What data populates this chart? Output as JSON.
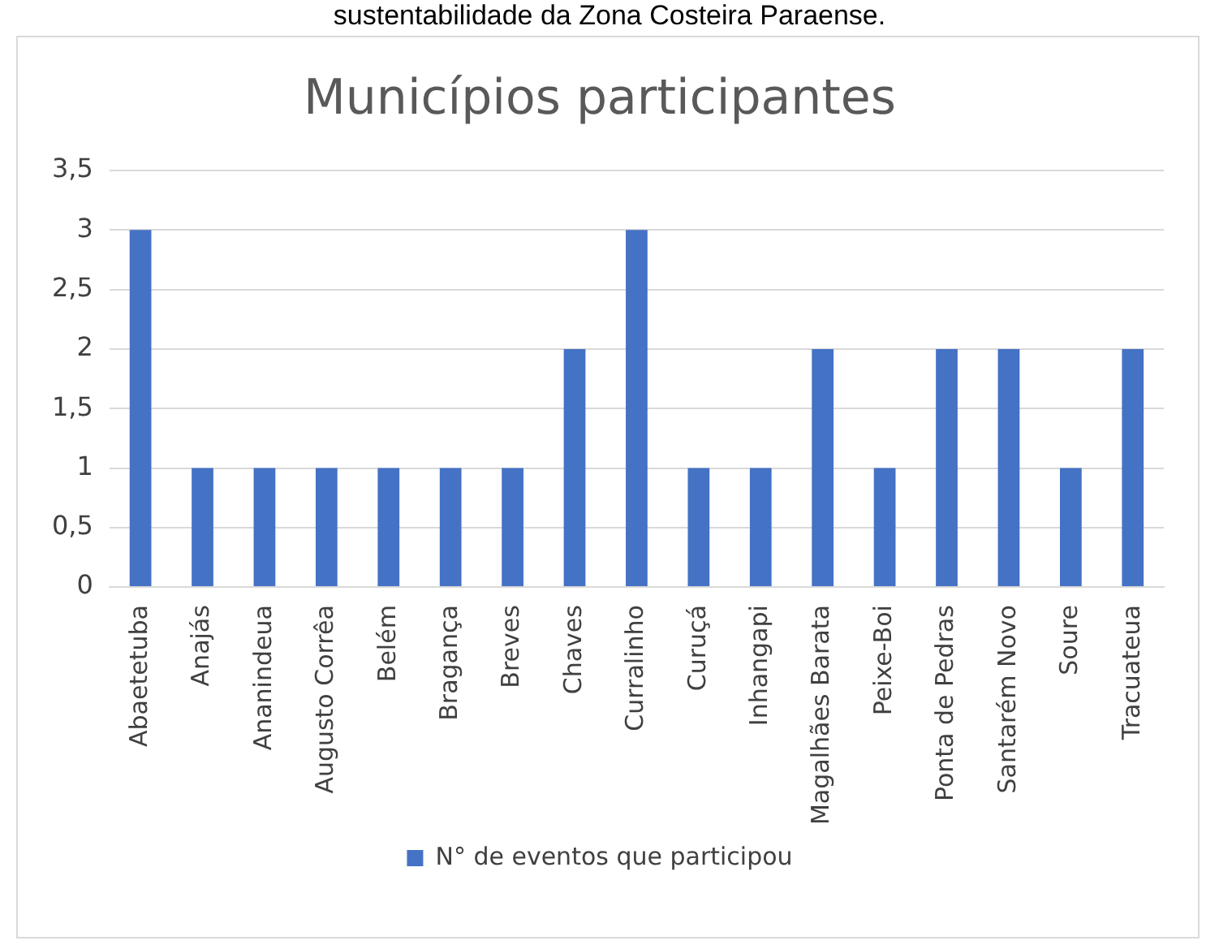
{
  "chart_data": {
    "type": "bar",
    "title": "Municípios participantes",
    "annotations": [
      "sustentabilidade da Zona Costeira Paraense."
    ],
    "categories": [
      "Abaetetuba",
      "Anajás",
      "Ananindeua",
      "Augusto Corrêa",
      "Belém",
      "Bragança",
      "Breves",
      "Chaves",
      "Curralinho",
      "Curuçá",
      "Inhangapi",
      "Magalhães Barata",
      "Peixe-Boi",
      "Ponta de Pedras",
      "Santarém Novo",
      "Soure",
      "Tracuateua"
    ],
    "series": [
      {
        "name": "N° de eventos que participou",
        "color": "#4472c4",
        "values": [
          3,
          1,
          1,
          1,
          1,
          1,
          1,
          2,
          3,
          1,
          1,
          2,
          1,
          2,
          2,
          1,
          2
        ]
      }
    ],
    "ylim": [
      0,
      3.5
    ],
    "yticks": [
      0,
      {
        "value": 0.5,
        "label": "0,5"
      },
      1,
      {
        "value": 1.5,
        "label": "1,5"
      },
      2,
      {
        "value": 2.5,
        "label": "2,5"
      },
      3,
      {
        "value": 3.5,
        "label": "3,5"
      }
    ],
    "grid": "y",
    "legend": "bottom"
  }
}
